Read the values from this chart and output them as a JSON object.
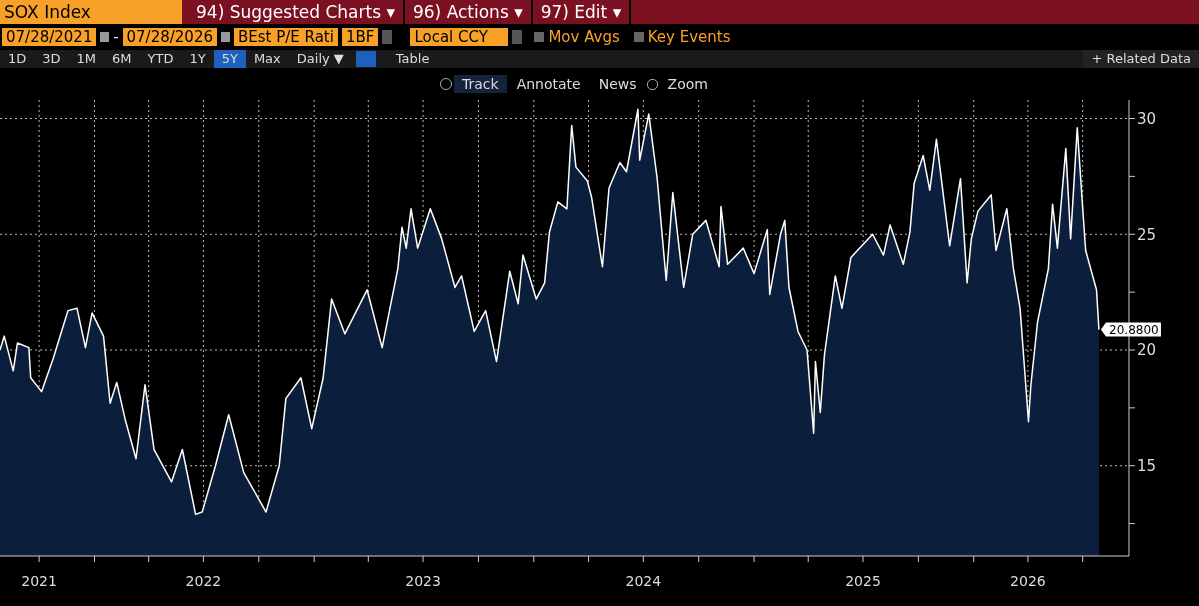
{
  "chart_data": {
    "type": "area",
    "title": "SOX Index",
    "annotations": [
      "94) Suggested Charts ▾",
      "96) Actions ▾",
      "97) Edit ▾",
      "07/28/2021",
      "-",
      "07/28/2026",
      "BEst P/E Rati",
      "1BF",
      "Local CCY",
      "Mov Avgs",
      "Key Events",
      "1D",
      "3D",
      "1M",
      "6M",
      "YTD",
      "1Y",
      "5Y",
      "Max",
      "Daily ▼",
      "Table",
      "+ Related Data",
      "Track",
      "Annotate",
      "News",
      "Zoom"
    ],
    "x": [
      "2021-07-28",
      "2021-08-04",
      "2021-08-19",
      "2021-08-26",
      "2021-09-14",
      "2021-09-17",
      "2021-10-05",
      "2021-10-24",
      "2021-11-18",
      "2021-12-03",
      "2021-12-17",
      "2021-12-28",
      "2022-01-16",
      "2022-01-27",
      "2022-02-07",
      "2022-02-21",
      "2022-03-11",
      "2022-03-26",
      "2022-04-10",
      "2022-05-09",
      "2022-05-27",
      "2022-06-18",
      "2022-06-29",
      "2022-07-21",
      "2022-08-12",
      "2022-09-06",
      "2022-10-13",
      "2022-11-04",
      "2022-11-15",
      "2022-12-10",
      "2022-12-28",
      "2023-01-16",
      "2023-01-30",
      "2023-02-21",
      "2023-03-30",
      "2023-04-24",
      "2023-05-20",
      "2023-05-27",
      "2023-06-03",
      "2023-06-11",
      "2023-06-22",
      "2023-07-13",
      "2023-08-01",
      "2023-08-23",
      "2023-09-03",
      "2023-09-24",
      "2023-10-13",
      "2023-10-31",
      "2023-11-22",
      "2023-12-06",
      "2023-12-14",
      "2024-01-05",
      "2024-01-19",
      "2024-01-27",
      "2024-02-10",
      "2024-02-25",
      "2024-03-04",
      "2024-03-11",
      "2024-03-30",
      "2024-04-06",
      "2024-04-24",
      "2024-05-05",
      "2024-05-23",
      "2024-06-03",
      "2024-06-22",
      "2024-06-25",
      "2024-07-10",
      "2024-07-24",
      "2024-08-08",
      "2024-08-19",
      "2024-09-06",
      "2024-09-21",
      "2024-10-13",
      "2024-11-04",
      "2024-11-07",
      "2024-11-18",
      "2024-12-14",
      "2025-01-01",
      "2025-01-23",
      "2025-01-27",
      "2025-02-14",
      "2025-02-21",
      "2025-02-28",
      "2025-03-15",
      "2025-03-30",
      "2025-04-10",
      "2025-04-13",
      "2025-04-21",
      "2025-04-28",
      "2025-05-16",
      "2025-05-27",
      "2025-06-11",
      "2025-06-29",
      "2025-07-17",
      "2025-08-04",
      "2025-08-15",
      "2025-09-06",
      "2025-09-17",
      "2025-09-24",
      "2025-10-09",
      "2025-10-20",
      "2025-10-31",
      "2025-11-22",
      "2025-12-10",
      "2025-12-21",
      "2025-12-28",
      "2026-01-08",
      "2026-01-30",
      "2026-02-07",
      "2026-02-25",
      "2026-03-08",
      "2026-03-19",
      "2026-04-02",
      "2026-04-06",
      "2026-04-17",
      "2026-05-05",
      "2026-05-12",
      "2026-05-20",
      "2026-06-03",
      "2026-06-11",
      "2026-06-22",
      "2026-07-03",
      "2026-07-06",
      "2026-07-24",
      "2026-07-28"
    ],
    "series": [
      {
        "color": "#ffffff",
        "values": [
          20.0,
          20.6,
          19.1,
          20.3,
          20.1,
          18.8,
          18.2,
          19.6,
          21.7,
          21.8,
          20.1,
          21.6,
          20.6,
          17.7,
          18.6,
          17.0,
          15.3,
          18.5,
          15.7,
          14.3,
          15.7,
          12.9,
          13.0,
          15.0,
          17.2,
          14.7,
          13.0,
          15.0,
          17.9,
          18.8,
          16.6,
          18.8,
          22.2,
          20.7,
          22.6,
          20.1,
          23.5,
          25.3,
          24.4,
          26.1,
          24.4,
          26.1,
          24.8,
          22.7,
          23.2,
          20.8,
          21.7,
          19.5,
          23.4,
          22.0,
          24.1,
          22.2,
          22.9,
          25.1,
          26.4,
          26.1,
          29.7,
          27.9,
          27.3,
          26.6,
          23.6,
          27.0,
          28.1,
          27.7,
          30.4,
          28.2,
          30.2,
          27.4,
          23.0,
          26.8,
          22.7,
          25.0,
          25.6,
          23.6,
          26.2,
          23.7,
          24.4,
          23.3,
          25.2,
          22.4,
          25.0,
          25.6,
          22.7,
          20.8,
          20.0,
          16.4,
          19.5,
          17.3,
          19.8,
          23.2,
          21.8,
          24.0,
          24.5,
          25.0,
          24.1,
          25.4,
          23.7,
          25.1,
          27.2,
          28.4,
          26.9,
          29.1,
          24.5,
          27.4,
          22.9,
          24.8,
          26.0,
          26.7,
          24.3,
          26.1,
          23.5,
          21.8,
          16.9,
          18.5,
          21.2,
          23.5,
          26.3,
          24.4,
          28.7,
          24.8,
          29.6,
          25.4,
          24.3,
          22.6,
          20.88
        ],
        "value_labels": [
          null,
          null,
          null,
          null,
          null,
          null,
          null,
          null,
          null,
          null,
          null,
          null,
          null,
          null,
          null,
          null,
          null,
          null,
          null,
          null,
          null,
          null,
          null,
          null,
          null,
          null,
          null,
          null,
          null,
          null,
          null,
          null,
          null,
          null,
          null,
          null,
          null,
          null,
          null,
          null,
          null,
          null,
          null,
          null,
          null,
          null,
          null,
          null,
          null,
          null,
          null,
          null,
          null,
          null,
          null,
          null,
          null,
          null,
          null,
          null,
          null,
          null,
          null,
          null,
          null,
          null,
          null,
          null,
          null,
          null,
          null,
          null,
          null,
          null,
          null,
          null,
          null,
          null,
          null,
          null,
          null,
          null,
          null,
          null,
          null,
          null,
          null,
          null,
          null,
          null,
          null,
          null,
          null,
          null,
          null,
          null,
          null,
          null,
          null,
          null,
          null,
          null,
          null,
          null,
          null,
          null,
          null,
          null,
          null,
          null,
          null,
          null,
          null,
          null,
          null,
          null,
          null,
          null,
          null,
          null,
          null,
          null,
          null,
          null,
          "20.8800"
        ]
      }
    ],
    "xlim": [
      "2021-07-28",
      "2026-09-16"
    ],
    "xticks": [
      {
        "value": "2021-10-01",
        "label": "2021"
      },
      {
        "value": "2022-01-01",
        "label": null
      },
      {
        "value": "2022-04-01",
        "label": null
      },
      {
        "value": "2022-07-01",
        "label": "2022"
      },
      {
        "value": "2022-10-01",
        "label": null
      },
      {
        "value": "2023-01-01",
        "label": null
      },
      {
        "value": "2023-04-01",
        "label": null
      },
      {
        "value": "2023-07-01",
        "label": "2023"
      },
      {
        "value": "2023-10-01",
        "label": null
      },
      {
        "value": "2024-01-01",
        "label": null
      },
      {
        "value": "2024-04-01",
        "label": null
      },
      {
        "value": "2024-07-01",
        "label": "2024"
      },
      {
        "value": "2024-10-01",
        "label": null
      },
      {
        "value": "2025-01-01",
        "label": null
      },
      {
        "value": "2025-04-01",
        "label": null
      },
      {
        "value": "2025-07-01",
        "label": "2025"
      },
      {
        "value": "2025-10-01",
        "label": null
      },
      {
        "value": "2026-01-01",
        "label": null
      },
      {
        "value": "2026-04-01",
        "label": "2026"
      },
      {
        "value": "2026-07-01",
        "label": null
      }
    ],
    "ylim": [
      11.1,
      30.8
    ],
    "yticks": [
      {
        "value": 12.5,
        "label": null
      },
      15,
      {
        "value": 17.5,
        "label": null
      },
      20,
      {
        "value": 22.5,
        "label": null
      },
      25,
      {
        "value": 27.5,
        "label": null
      },
      30
    ],
    "grid": true,
    "line_style": "solid",
    "marker": "none",
    "legend": false
  }
}
